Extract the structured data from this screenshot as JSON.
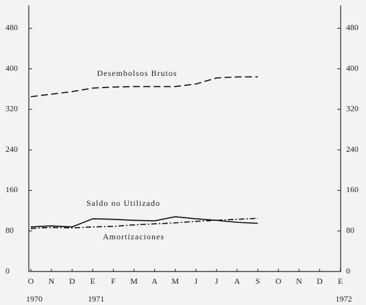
{
  "chart_data": {
    "type": "line",
    "categories": [
      "O",
      "N",
      "D",
      "E",
      "F",
      "M",
      "A",
      "M",
      "J",
      "J",
      "A",
      "S",
      "O",
      "N",
      "D",
      "E"
    ],
    "years": [
      "1970",
      null,
      null,
      "1971",
      null,
      null,
      null,
      null,
      null,
      null,
      null,
      null,
      null,
      null,
      null,
      "1972"
    ],
    "series": [
      {
        "name": "Desembolsos Brutos",
        "color": "#111111",
        "dash": "dashed",
        "values": [
          345,
          350,
          355,
          362,
          364,
          365,
          365,
          365,
          370,
          382,
          384,
          384,
          null,
          null,
          null,
          null
        ]
      },
      {
        "name": "Saldo no Utilizado",
        "color": "#111111",
        "dash": "solid",
        "values": [
          88,
          90,
          88,
          104,
          103,
          101,
          100,
          108,
          104,
          101,
          97,
          95,
          null,
          null,
          null,
          null
        ]
      },
      {
        "name": "Amortizaciones",
        "color": "#111111",
        "dash": "dashdot",
        "values": [
          85,
          87,
          86,
          88,
          89,
          92,
          94,
          96,
          99,
          101,
          103,
          105,
          null,
          null,
          null,
          null
        ]
      }
    ],
    "ylim": [
      0,
      525
    ],
    "yticks": [
      0,
      80,
      160,
      240,
      320,
      400,
      480
    ],
    "grid": false
  }
}
